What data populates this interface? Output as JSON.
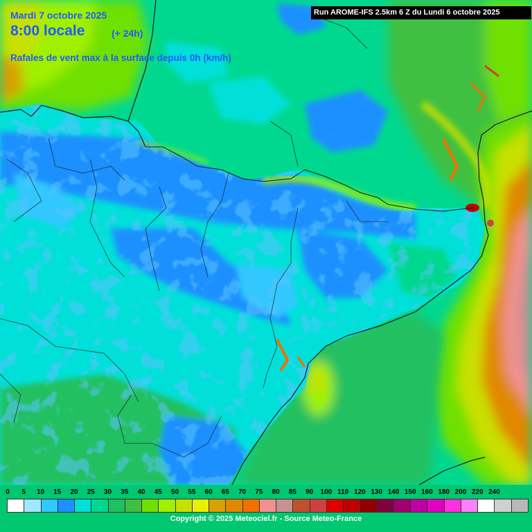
{
  "header": {
    "date": "Mardi 7 octobre 2025",
    "time": "8:00 locale",
    "offset": "(+ 24h)",
    "variable": "Rafales de vent max à la surface depuis 0h (km/h)"
  },
  "run_info": "Run AROME-IFS 2.5km 6 Z du Lundi 6 octobre 2025",
  "legend": {
    "labels": [
      "0",
      "5",
      "10",
      "15",
      "20",
      "25",
      "30",
      "35",
      "40",
      "45",
      "50",
      "55",
      "60",
      "65",
      "70",
      "75",
      "80",
      "85",
      "90",
      "100",
      "110",
      "120",
      "130",
      "140",
      "150",
      "160",
      "180",
      "200",
      "220",
      "240"
    ],
    "colors": [
      "#ffffff",
      "#a0e8ff",
      "#30c8ff",
      "#1e90ff",
      "#00e0d8",
      "#00d890",
      "#20c060",
      "#40c040",
      "#70e000",
      "#a0f000",
      "#c8e000",
      "#e8f000",
      "#d8a000",
      "#e08800",
      "#f07000",
      "#f09090",
      "#c89090",
      "#c05030",
      "#d04040",
      "#e00000",
      "#c00000",
      "#900000",
      "#800040",
      "#a00070",
      "#c000a0",
      "#e000c0",
      "#ff30e0",
      "#ff80ff",
      "#ffffff",
      "#d0d0d0",
      "#b8b8b8"
    ]
  },
  "copyright": "Copyright © 2025 Meteociel.fr - Source Meteo-France"
}
